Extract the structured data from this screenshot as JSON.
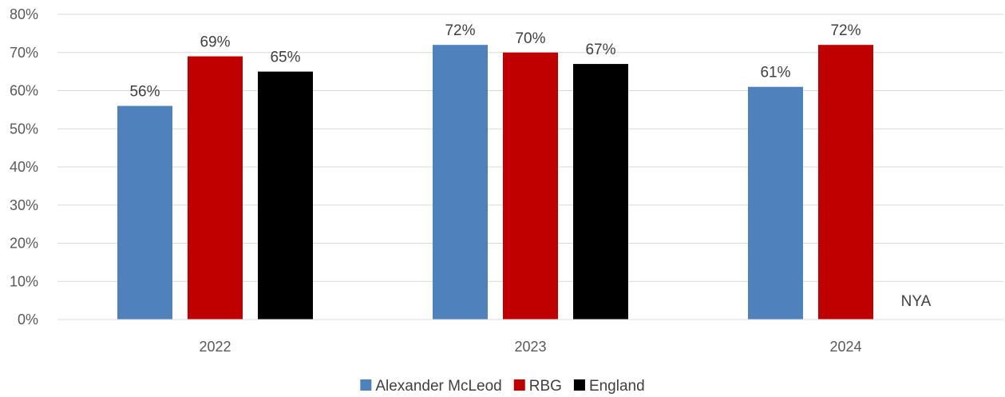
{
  "chart_data": {
    "type": "bar",
    "categories": [
      "2022",
      "2023",
      "2024"
    ],
    "series": [
      {
        "name": "Alexander McLeod",
        "color": "#4F81BD",
        "values": [
          56,
          72,
          61
        ],
        "labels": [
          "56%",
          "72%",
          "61%"
        ]
      },
      {
        "name": "RBG",
        "color": "#C00000",
        "values": [
          69,
          70,
          72
        ],
        "labels": [
          "69%",
          "70%",
          "72%"
        ]
      },
      {
        "name": "England",
        "color": "#000000",
        "values": [
          65,
          67,
          null
        ],
        "labels": [
          "65%",
          "67%",
          "NYA"
        ]
      }
    ],
    "y_ticks": [
      "0%",
      "10%",
      "20%",
      "30%",
      "40%",
      "50%",
      "60%",
      "70%",
      "80%"
    ],
    "ylim": [
      0,
      80
    ],
    "grid": true,
    "legend_position": "bottom"
  }
}
